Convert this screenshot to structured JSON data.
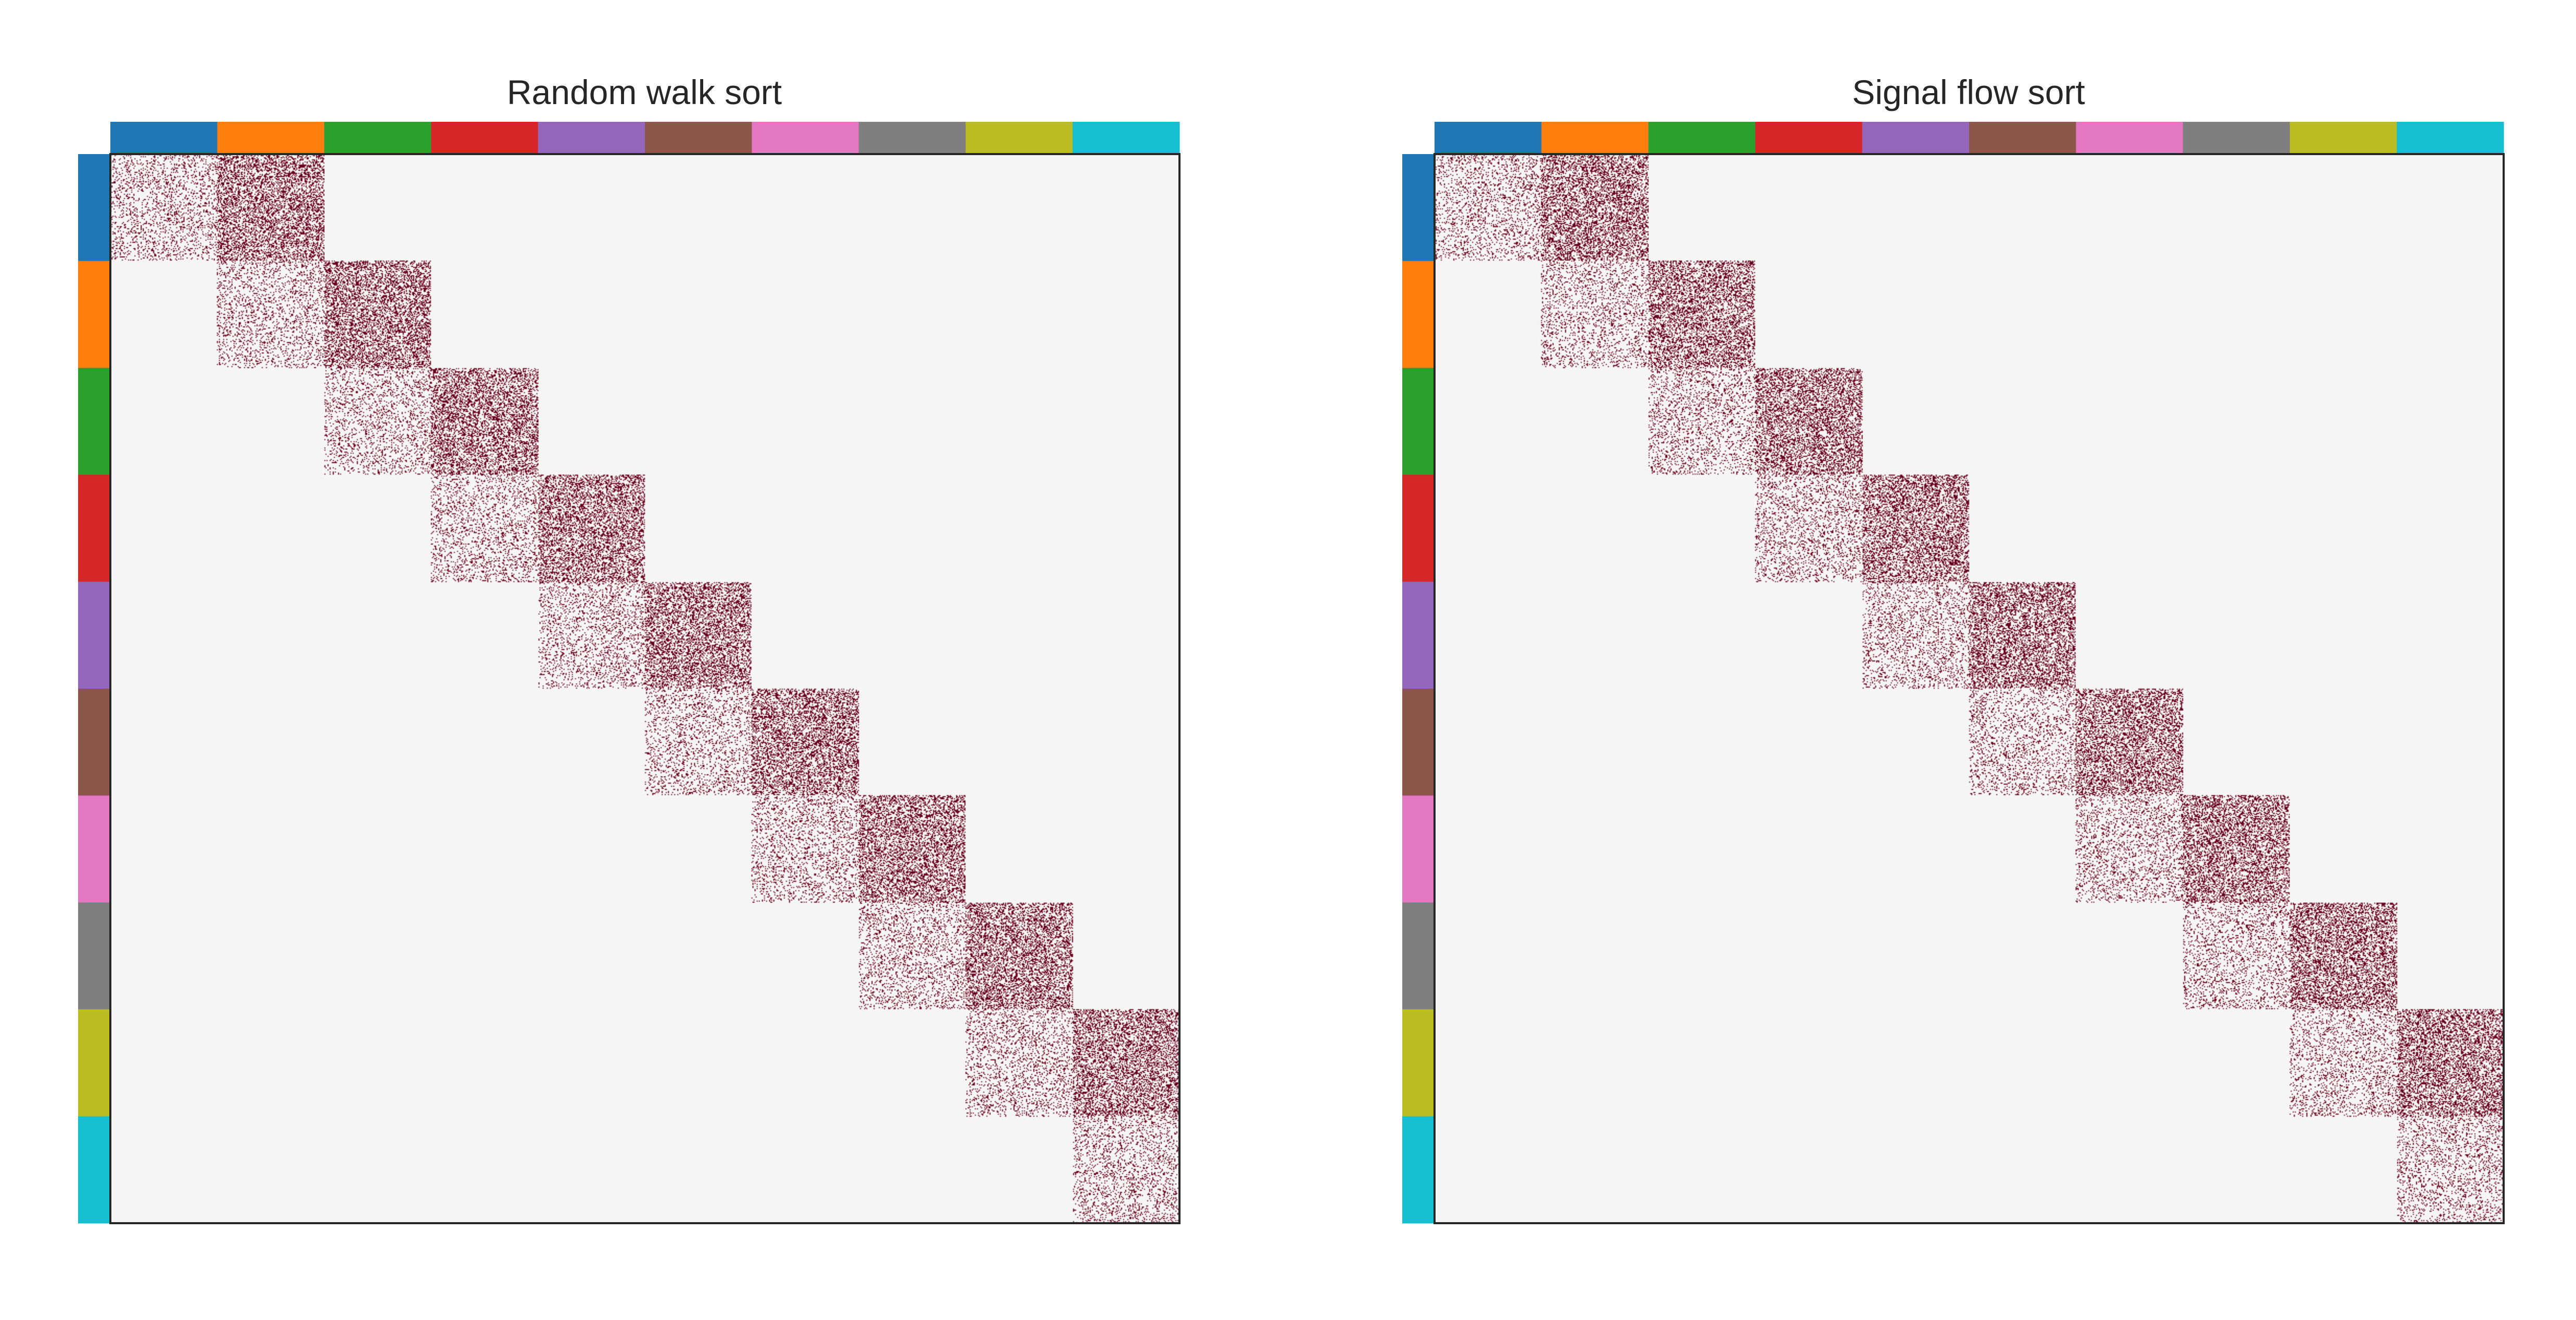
{
  "chart_data": [
    {
      "type": "heatmap",
      "title": "Random walk sort",
      "n_blocks": 10,
      "block_colors": [
        "#1f77b4",
        "#ff7f0e",
        "#2ca02c",
        "#d62728",
        "#9467bd",
        "#8c564b",
        "#e377c2",
        "#7f7f7f",
        "#bcbd22",
        "#17becf"
      ],
      "diagonal_block_density": 0.18,
      "upper_off_diagonal_density": 0.4,
      "lower_off_diagonal_density": 0.0,
      "other_density": 0.0
    },
    {
      "type": "heatmap",
      "title": "Signal flow sort",
      "n_blocks": 10,
      "block_colors": [
        "#1f77b4",
        "#ff7f0e",
        "#2ca02c",
        "#d62728",
        "#9467bd",
        "#8c564b",
        "#e377c2",
        "#7f7f7f",
        "#bcbd22",
        "#17becf"
      ],
      "diagonal_block_density": 0.18,
      "upper_off_diagonal_density": 0.4,
      "lower_off_diagonal_density": 0.0,
      "other_density": 0.0
    }
  ],
  "colors": {
    "background": "#f5f5f5",
    "edge": "#67001f",
    "frame": "#262626"
  }
}
